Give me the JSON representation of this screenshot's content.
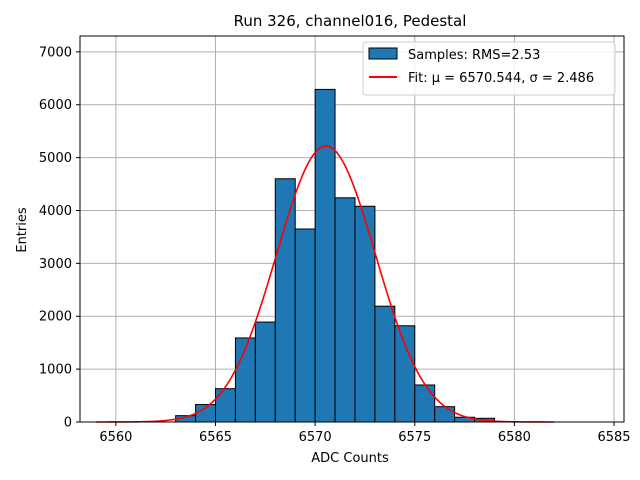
{
  "chart_data": {
    "type": "bar",
    "title": "Run 326, channel016, Pedestal",
    "xlabel": "ADC Counts",
    "ylabel": "Entries",
    "xlim": [
      6558.2,
      6585.5
    ],
    "ylim": [
      0,
      7300
    ],
    "xticks": [
      6560,
      6565,
      6570,
      6575,
      6580,
      6585
    ],
    "yticks": [
      0,
      1000,
      2000,
      3000,
      4000,
      5000,
      6000,
      7000
    ],
    "grid": true,
    "legend_placement": "top-right",
    "histogram": {
      "name": "Samples: RMS=2.53",
      "bin_width": 1,
      "bin_start": [
        6563,
        6564,
        6565,
        6566,
        6567,
        6568,
        6569,
        6570,
        6571,
        6572,
        6573,
        6574,
        6575,
        6576,
        6577,
        6578
      ],
      "counts": [
        120,
        330,
        630,
        1590,
        1890,
        4600,
        3650,
        6290,
        4240,
        4080,
        2190,
        1820,
        700,
        290,
        90,
        70
      ]
    },
    "fit": {
      "name": "Fit: μ = 6570.544, σ = 2.486",
      "mu": 6570.544,
      "sigma": 2.486,
      "amplitude": 5220,
      "x_range": [
        6559,
        6582
      ]
    },
    "colors": {
      "bar_fill": "#1f77b4",
      "bar_edge": "#000000",
      "fit_line": "#ff0000",
      "grid": "#b0b0b0"
    }
  }
}
